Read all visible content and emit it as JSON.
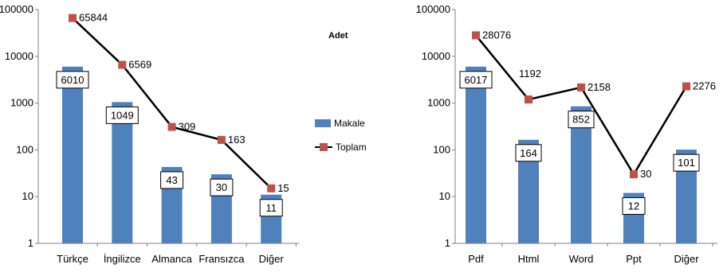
{
  "chart_data": [
    {
      "type": "bar",
      "title": "Adet",
      "categories": [
        "Türkçe",
        "İngilizce",
        "Almanca",
        "Fransızca",
        "Diğer"
      ],
      "y_scale": "log",
      "ylim": [
        1,
        100000
      ],
      "y_ticks": [
        "1",
        "10",
        "100",
        "1000",
        "10000",
        "100000"
      ],
      "legend": {
        "position": "right",
        "entries": [
          "Makale",
          "Toplam"
        ]
      },
      "series": [
        {
          "name": "Makale",
          "type": "bar",
          "values": [
            6010,
            1049,
            43,
            30,
            11
          ],
          "labels": [
            "6010",
            "1049",
            "43",
            "30",
            "11"
          ],
          "color": "#4F81BD"
        },
        {
          "name": "Toplam",
          "type": "line",
          "values": [
            65844,
            6569,
            309,
            163,
            15
          ],
          "labels": [
            "65844",
            "6569",
            "309",
            "163",
            "15"
          ],
          "color": "#000000",
          "marker_color": "#C0504D"
        }
      ]
    },
    {
      "type": "bar",
      "categories": [
        "Pdf",
        "Html",
        "Word",
        "Ppt",
        "Diğer"
      ],
      "y_scale": "log",
      "ylim": [
        1,
        100000
      ],
      "y_ticks": [
        "1",
        "10",
        "100",
        "1000",
        "10000",
        "100000"
      ],
      "series": [
        {
          "type": "bar",
          "values": [
            6017,
            164,
            852,
            12,
            101
          ],
          "labels": [
            "6017",
            "164",
            "852",
            "12",
            "101"
          ],
          "color": "#4F81BD"
        },
        {
          "type": "line",
          "values": [
            28076,
            1192,
            2158,
            30,
            2276
          ],
          "labels": [
            "28076",
            "1192",
            "2158",
            "30",
            "2276"
          ],
          "color": "#000000",
          "marker_color": "#C0504D"
        }
      ]
    }
  ]
}
